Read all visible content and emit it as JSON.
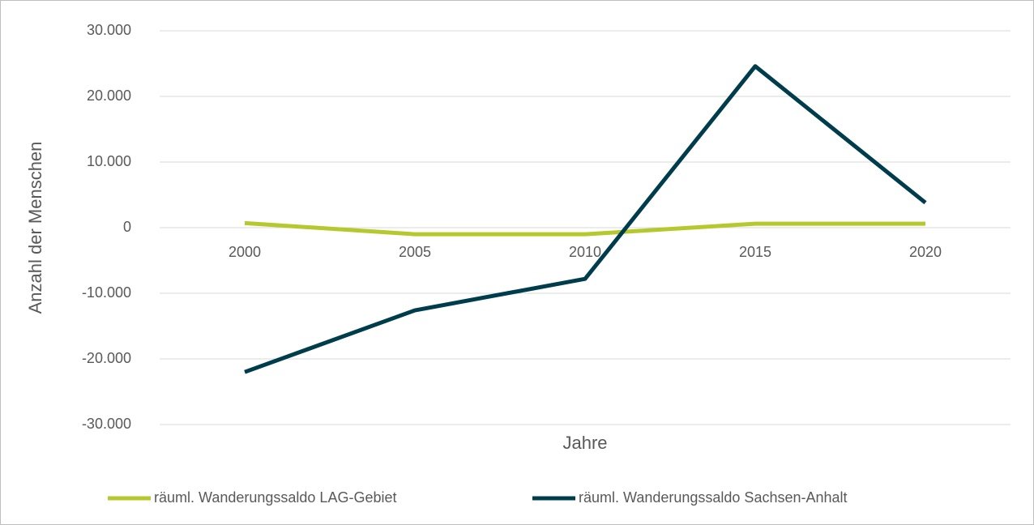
{
  "chart_data": {
    "type": "line",
    "categories": [
      "2000",
      "2005",
      "2010",
      "2015",
      "2020"
    ],
    "x_label": "Jahre",
    "y_label": "Anzahl der Menschen",
    "series": [
      {
        "name": "räuml. Wanderungssaldo LAG-Gebiet",
        "color": "#b5c92f",
        "values": [
          700,
          -1000,
          -1000,
          600,
          600
        ]
      },
      {
        "name": "räuml. Wanderungssaldo Sachsen-Anhalt",
        "color": "#003d4c",
        "values": [
          -22000,
          -12600,
          -7800,
          24600,
          3800
        ]
      }
    ],
    "ylim": [
      -30000,
      30000
    ],
    "yticks": [
      {
        "value": -30000,
        "label": "-30.000"
      },
      {
        "value": -20000,
        "label": "-20.000"
      },
      {
        "value": -10000,
        "label": "-10.000"
      },
      0,
      {
        "value": 10000,
        "label": "10.000"
      },
      {
        "value": 20000,
        "label": "20.000"
      },
      {
        "value": 30000,
        "label": "30.000"
      }
    ],
    "grid": true,
    "legend": "bottom"
  }
}
